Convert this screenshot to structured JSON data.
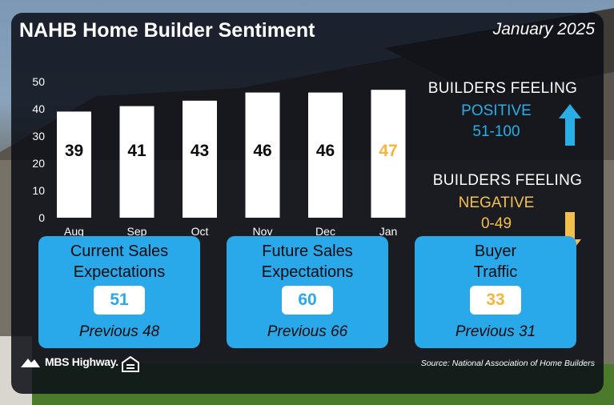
{
  "header": {
    "title": "NAHB Home Builder Sentiment",
    "date": "January 2025"
  },
  "chart_data": {
    "type": "bar",
    "categories": [
      "Aug",
      "Sep",
      "Oct",
      "Nov",
      "Dec",
      "Jan"
    ],
    "values": [
      39,
      41,
      43,
      46,
      46,
      47
    ],
    "ylim": [
      0,
      50
    ],
    "yticks": [
      0,
      10,
      20,
      30,
      40,
      50
    ],
    "title": "",
    "xlabel": "",
    "ylabel": "",
    "grid": false,
    "bar_color": "#ffffff",
    "label_color": "#0b0b0b",
    "highlight_label_color": "#f3b73d",
    "highlight_index": 5
  },
  "legend": {
    "positive": {
      "heading": "BUILDERS FEELING",
      "label": "POSITIVE",
      "range": "51-100",
      "color": "#29aee6",
      "icon": "arrow-up-icon"
    },
    "negative": {
      "heading": "BUILDERS FEELING",
      "label": "NEGATIVE",
      "range": "0-49",
      "color": "#f3c04e",
      "icon": "arrow-down-icon"
    }
  },
  "cards": [
    {
      "title_line1": "Current Sales",
      "title_line2": "Expectations",
      "value": "51",
      "value_color": "#29a8ea",
      "previous": "Previous 48"
    },
    {
      "title_line1": "Future Sales",
      "title_line2": "Expectations",
      "value": "60",
      "value_color": "#29a8ea",
      "previous": "Previous 66"
    },
    {
      "title_line1": "Buyer",
      "title_line2": "Traffic",
      "value": "33",
      "value_color": "#f3b73d",
      "previous": "Previous 31"
    }
  ],
  "footer": {
    "logo_text": "MBS Highway.",
    "source": "Source: National Association of Home Builders"
  },
  "colors": {
    "accent_blue": "#29a8ea",
    "accent_yellow": "#f3c04e",
    "panel": "#0a0e16"
  }
}
